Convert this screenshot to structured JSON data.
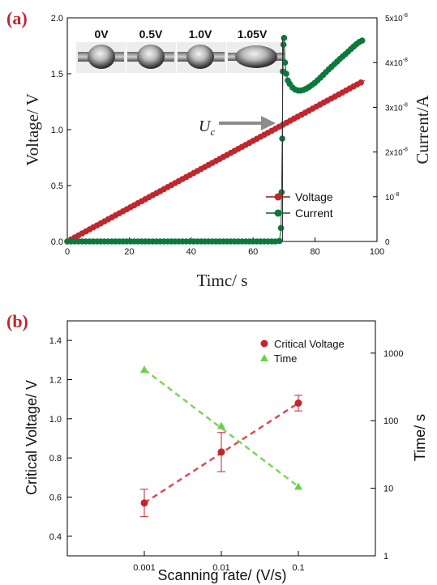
{
  "panel_a": {
    "label": "(a)",
    "inset_labels": [
      "0V",
      "0.5V",
      "1.0V",
      "1.05V"
    ],
    "annotation": "U",
    "annotation_sub": "c"
  },
  "panel_b": {
    "label": "(b)"
  },
  "chart_data": [
    {
      "type": "line",
      "title": "",
      "xlabel": "Timc/ s",
      "ylabel": "Voltage/ V",
      "y2label": "Current/A",
      "xlim": [
        0,
        100
      ],
      "ylim": [
        0,
        2.0
      ],
      "y2lim": [
        0,
        5e-08
      ],
      "xticks": [
        "0",
        "20",
        "40",
        "60",
        "80",
        "100"
      ],
      "yticks": [
        "0.0",
        "0.5",
        "1.0",
        "1.5",
        "2.0"
      ],
      "y2ticks": [
        {
          "base": "0",
          "exp": ""
        },
        {
          "base": "10",
          "exp": "-8"
        },
        {
          "base": "2x10",
          "exp": "-8"
        },
        {
          "base": "3x10",
          "exp": "-8"
        },
        {
          "base": "4x10",
          "exp": "-8"
        },
        {
          "base": "5x10",
          "exp": "-8"
        }
      ],
      "legend_position": "bottom-right",
      "colors": {
        "voltage": "#c0272d",
        "current": "#0a7a3c"
      },
      "series": [
        {
          "name": "Voltage",
          "axis": "left",
          "x": [
            0,
            4,
            8,
            12,
            16,
            20,
            24,
            28,
            32,
            36,
            40,
            44,
            48,
            52,
            56,
            60,
            64,
            68,
            72,
            76,
            80,
            84,
            88,
            92,
            96
          ],
          "y": [
            0,
            0.06,
            0.12,
            0.18,
            0.24,
            0.3,
            0.36,
            0.42,
            0.48,
            0.54,
            0.6,
            0.66,
            0.72,
            0.78,
            0.84,
            0.9,
            0.96,
            1.02,
            1.08,
            1.14,
            1.2,
            1.26,
            1.32,
            1.38,
            1.44
          ]
        },
        {
          "name": "Current",
          "axis": "right",
          "x": [
            0,
            8,
            16,
            24,
            32,
            40,
            48,
            56,
            64,
            68.5,
            69.0,
            69.2,
            69.4,
            69.6,
            69.8,
            70.0,
            70.3,
            70.7,
            71.2,
            72,
            73,
            74,
            75,
            76,
            77,
            78,
            80,
            82,
            84,
            86,
            88,
            90,
            92,
            94,
            96
          ],
          "y": [
            0,
            0,
            0,
            0,
            0,
            0,
            0,
            0,
            0,
            1e-10,
            3e-09,
            1.1e-08,
            2.3e-08,
            3.8e-08,
            4.4e-08,
            4.55e-08,
            4e-08,
            3.75e-08,
            3.6e-08,
            3.5e-08,
            3.42e-08,
            3.38e-08,
            3.37e-08,
            3.38e-08,
            3.41e-08,
            3.45e-08,
            3.55e-08,
            3.68e-08,
            3.82e-08,
            3.95e-08,
            4.08e-08,
            4.2e-08,
            4.33e-08,
            4.45e-08,
            4.52e-08
          ]
        }
      ],
      "annotation_x": 69.5
    },
    {
      "type": "scatter",
      "title": "",
      "xlabel": "Scanning rate/ (V/s)",
      "ylabel": "Critical Voltage/ V",
      "y2label": "Time/ s",
      "xscale": "log",
      "y2scale": "log",
      "xlim": [
        0.0001,
        1
      ],
      "ylim": [
        0.3,
        1.5
      ],
      "y2lim": [
        1,
        3000
      ],
      "xticks": [
        "0.001",
        "0.01",
        "0.1"
      ],
      "yticks": [
        "0.4",
        "0.6",
        "0.8",
        "1.0",
        "1.2",
        "1.4"
      ],
      "y2ticks": [
        "1",
        "10",
        "100",
        "1000"
      ],
      "legend_position": "top-right",
      "colors": {
        "critical_voltage": "#c0272d",
        "time": "#6ccf4a"
      },
      "series": [
        {
          "name": "Critical Voltage",
          "axis": "left",
          "x": [
            0.001,
            0.01,
            0.1
          ],
          "y": [
            0.57,
            0.83,
            1.08
          ],
          "err": [
            0.07,
            0.1,
            0.04
          ],
          "trend": "dashed"
        },
        {
          "name": "Time",
          "axis": "right",
          "x": [
            0.001,
            0.01,
            0.1
          ],
          "y": [
            570,
            84,
            10.6
          ],
          "trend": "dashed"
        }
      ]
    }
  ]
}
